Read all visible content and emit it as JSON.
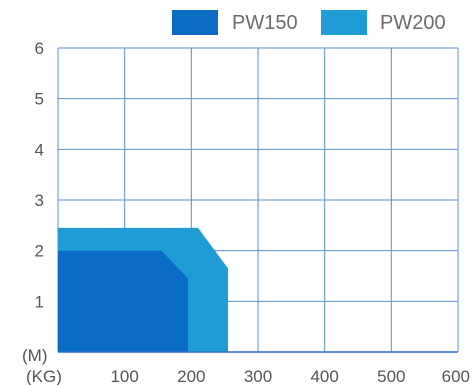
{
  "chart_data": {
    "type": "area",
    "title": "",
    "xlabel": "(KG)",
    "ylabel": "(M)",
    "xlim": [
      0,
      600
    ],
    "ylim": [
      0,
      6
    ],
    "x_ticks": [
      "100",
      "200",
      "300",
      "400",
      "500",
      "600"
    ],
    "y_ticks": [
      "1",
      "2",
      "3",
      "4",
      "5",
      "6"
    ],
    "grid": true,
    "legend_position": "top-right",
    "series": [
      {
        "name": "PW150",
        "color": "#0a6cc4",
        "points": [
          [
            0,
            0
          ],
          [
            0,
            2.0
          ],
          [
            155,
            2.0
          ],
          [
            195,
            1.45
          ],
          [
            195,
            0
          ]
        ]
      },
      {
        "name": "PW200",
        "color": "#1f9bd6",
        "points": [
          [
            0,
            0
          ],
          [
            0,
            2.45
          ],
          [
            210,
            2.45
          ],
          [
            255,
            1.65
          ],
          [
            255,
            0
          ]
        ]
      }
    ]
  }
}
